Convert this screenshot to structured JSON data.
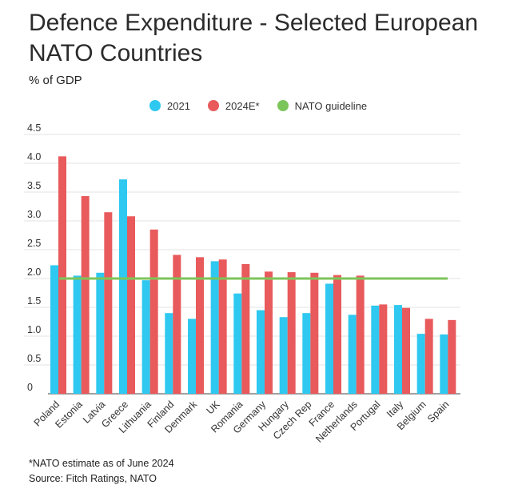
{
  "title": "Defence Expenditure - Selected European NATO Countries",
  "subtitle": "% of GDP",
  "footnote": "*NATO estimate as of June 2024",
  "source": "Source: Fitch Ratings, NATO",
  "colors": {
    "series_2021": "#2ec8f0",
    "series_2024": "#e85a5c",
    "guideline": "#7cc55a",
    "grid": "#e3e3e3",
    "axis": "#444444"
  },
  "chart_data": {
    "type": "bar",
    "title": "Defence Expenditure - Selected European NATO Countries",
    "ylabel": "% of GDP",
    "ylim": [
      0,
      4.5
    ],
    "yticks": [
      "0",
      "0.5",
      "1.0",
      "1.5",
      "2.0",
      "2.5",
      "3.0",
      "3.5",
      "4.0",
      "4.5"
    ],
    "grid": true,
    "legend_position": "top",
    "categories": [
      "Poland",
      "Estonia",
      "Latvia",
      "Greece",
      "Lithuania",
      "Finland",
      "Denmark",
      "UK",
      "Romania",
      "Germany",
      "Hungary",
      "Czech Rep",
      "France",
      "Netherlands",
      "Portugal",
      "Italy",
      "Belgium",
      "Spain"
    ],
    "series": [
      {
        "name": "2021",
        "values": [
          2.23,
          2.05,
          2.1,
          3.72,
          1.97,
          1.4,
          1.3,
          2.3,
          1.74,
          1.45,
          1.33,
          1.4,
          1.91,
          1.37,
          1.53,
          1.54,
          1.04,
          1.03
        ]
      },
      {
        "name": "2024E*",
        "values": [
          4.12,
          3.43,
          3.15,
          3.08,
          2.85,
          2.41,
          2.37,
          2.33,
          2.25,
          2.12,
          2.11,
          2.1,
          2.06,
          2.05,
          1.55,
          1.49,
          1.3,
          1.28
        ]
      }
    ],
    "guideline": {
      "name": "NATO guideline",
      "value": 2.0
    }
  }
}
